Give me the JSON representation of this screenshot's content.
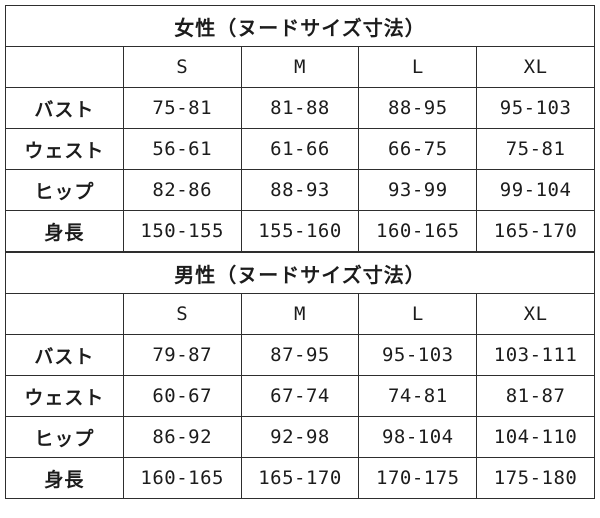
{
  "colors": {
    "background": "#ffffff",
    "border": "#2e2e2e",
    "text": "#1c1c1c"
  },
  "chart_data": [
    {
      "type": "table",
      "title": "女性（ヌードサイズ寸法）",
      "columns": [
        "",
        "S",
        "M",
        "L",
        "XL"
      ],
      "rows": [
        [
          "バスト",
          "75-81",
          "81-88",
          "88-95",
          "95-103"
        ],
        [
          "ウェスト",
          "56-61",
          "61-66",
          "66-75",
          "75-81"
        ],
        [
          "ヒップ",
          "82-86",
          "88-93",
          "93-99",
          "99-104"
        ],
        [
          "身長",
          "150-155",
          "155-160",
          "160-165",
          "165-170"
        ]
      ]
    },
    {
      "type": "table",
      "title": "男性（ヌードサイズ寸法）",
      "columns": [
        "",
        "S",
        "M",
        "L",
        "XL"
      ],
      "rows": [
        [
          "バスト",
          "79-87",
          "87-95",
          "95-103",
          "103-111"
        ],
        [
          "ウェスト",
          "60-67",
          "67-74",
          "74-81",
          "81-87"
        ],
        [
          "ヒップ",
          "86-92",
          "92-98",
          "98-104",
          "104-110"
        ],
        [
          "身長",
          "160-165",
          "165-170",
          "170-175",
          "175-180"
        ]
      ]
    }
  ]
}
